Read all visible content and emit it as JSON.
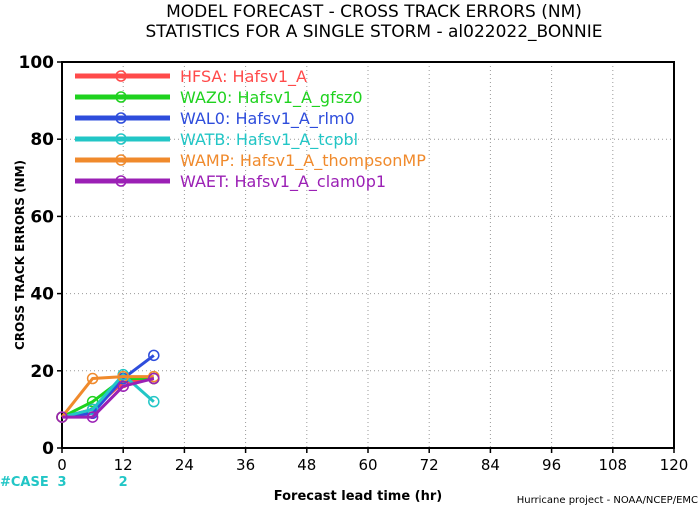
{
  "chart_data": {
    "type": "line",
    "title": "MODEL FORECAST - CROSS TRACK ERRORS (NM)",
    "subtitle": "STATISTICS FOR A SINGLE STORM - al022022_BONNIE",
    "xlabel": "Forecast lead time (hr)",
    "ylabel": "CROSS TRACK ERRORS (NM)",
    "xlim": [
      0,
      120
    ],
    "ylim": [
      0,
      100
    ],
    "xticks": [
      0,
      12,
      24,
      36,
      48,
      60,
      72,
      84,
      96,
      108,
      120
    ],
    "yticks": [
      0,
      20,
      40,
      60,
      80,
      100
    ],
    "grid": true,
    "legend_position": "top-left",
    "x": [
      0,
      6,
      12,
      18
    ],
    "series": [
      {
        "name": "HFSA: Hafsv1_A",
        "color": "#ff4a4a",
        "values": [
          8,
          10,
          17,
          18
        ]
      },
      {
        "name": "WAZ0: Hafsv1_A_gfsz0",
        "color": "#1fd21f",
        "values": [
          8,
          12,
          18,
          18
        ]
      },
      {
        "name": "WAL0: Hafsv1_A_rlm0",
        "color": "#2e4ddc",
        "values": [
          8,
          9,
          18,
          24
        ]
      },
      {
        "name": "WATB: Hafsv1_A_tcpbl",
        "color": "#22c6c6",
        "values": [
          8,
          10,
          19,
          12
        ]
      },
      {
        "name": "WAMP: Hafsv1_A_thompsonMP",
        "color": "#f08a2c",
        "values": [
          8,
          18,
          18.5,
          18.5
        ]
      },
      {
        "name": "WAET: Hafsv1_A_clam0p1",
        "color": "#9b20b5",
        "values": [
          8,
          8,
          16,
          18
        ]
      }
    ],
    "cases": {
      "label": "#CASE",
      "color": "#22c6c6",
      "entries": [
        {
          "x": 0,
          "value": "3"
        },
        {
          "x": 12,
          "value": "2"
        }
      ]
    },
    "footer_note": "Hurricane project - NOAA/NCEP/EMC"
  }
}
